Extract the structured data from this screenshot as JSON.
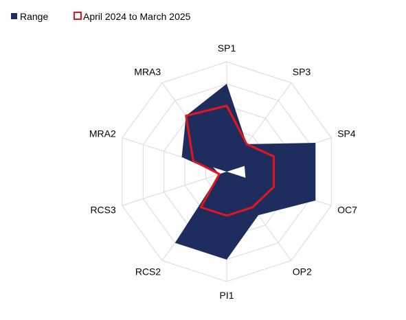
{
  "chart_data": {
    "type": "radar",
    "categories": [
      "SP1",
      "SP3",
      "SP4",
      "OC7",
      "OP2",
      "PI1",
      "RCS2",
      "RCS3",
      "MRA2",
      "MRA3"
    ],
    "rmax": 1.0,
    "grid": true,
    "grid_rings": 5,
    "legend_position": "top-left",
    "series": [
      {
        "name": "Range",
        "style": "band",
        "color": "#1f2d5e",
        "outer": [
          0.8,
          0.31,
          0.85,
          0.85,
          0.49,
          0.8,
          0.8,
          0.07,
          0.43,
          0.63
        ],
        "inner": [
          0.0,
          0.0,
          0.17,
          0.18,
          0.0,
          0.0,
          0.0,
          0.07,
          0.13,
          0.0
        ]
      },
      {
        "name": "April 2024 to March 2025",
        "style": "line",
        "color": "#e8141c",
        "values": [
          0.6,
          0.31,
          0.45,
          0.45,
          0.4,
          0.4,
          0.4,
          0.07,
          0.32,
          0.63
        ]
      }
    ]
  }
}
